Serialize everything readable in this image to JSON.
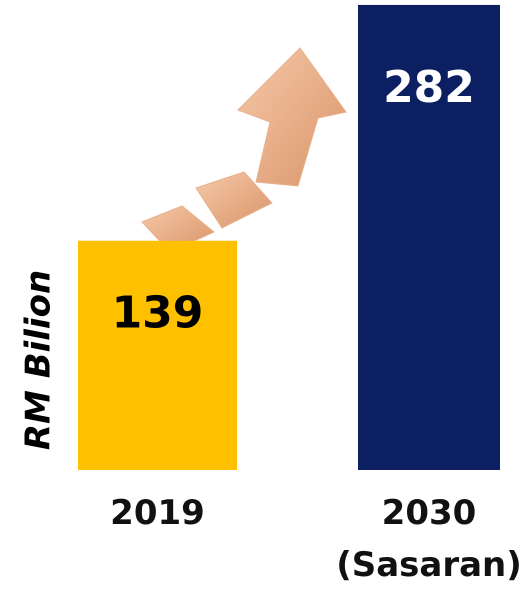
{
  "chart_data": {
    "type": "bar",
    "y_label": "RM Bilion",
    "categories": [
      "2019",
      "2030 (Sasaran)"
    ],
    "values": [
      139,
      282
    ],
    "colors": [
      "#FFC000",
      "#0B1F62"
    ],
    "value_label_colors": [
      "#000000",
      "#FFFFFF"
    ],
    "ylim": [
      0,
      285
    ]
  }
}
